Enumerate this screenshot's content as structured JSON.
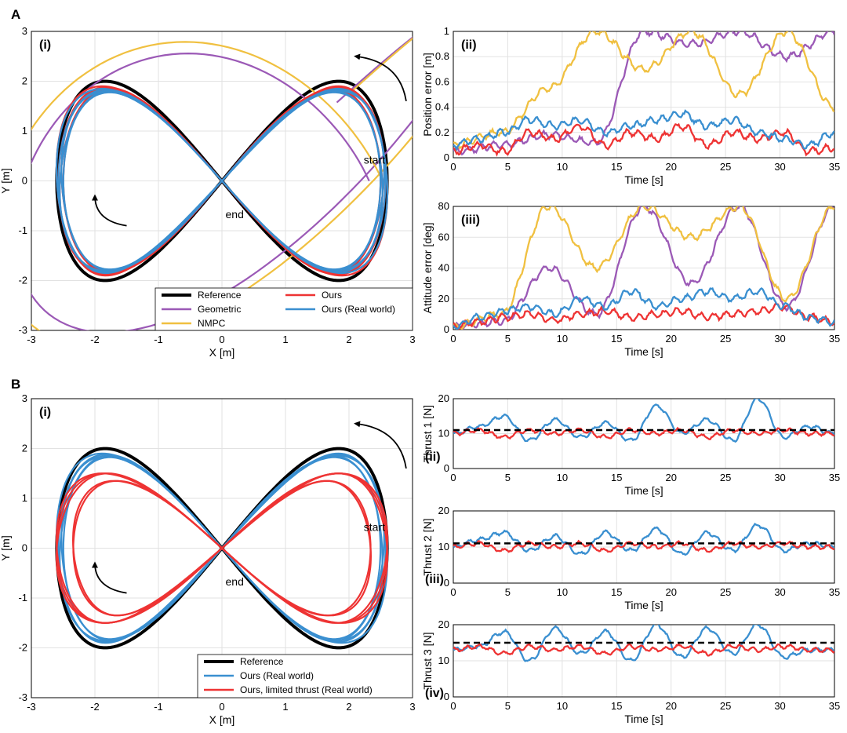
{
  "colors": {
    "reference": "#000000",
    "geometric": "#9b59b6",
    "nmpc": "#f0c040",
    "ours": "#ee3333",
    "ours_real": "#3a8fd0",
    "limited": "#ee3333",
    "grid": "#e2e2e2"
  },
  "panels": [
    {
      "letter": "A"
    },
    {
      "letter": "B"
    }
  ],
  "chart_data": [
    {
      "id": "A-i",
      "panel": "A",
      "label": "(i)",
      "type": "line",
      "xlabel": "X [m]",
      "ylabel": "Y [m]",
      "xlim": [
        -3,
        3
      ],
      "ylim": [
        -3,
        3
      ],
      "xticks": [
        -3,
        -2,
        -1,
        0,
        1,
        2,
        3
      ],
      "yticks": [
        -3,
        -2,
        -1,
        0,
        1,
        2,
        3
      ],
      "grid": true,
      "legend_position": "bottom-right",
      "annotations": [
        {
          "text": "start",
          "x": 2.4,
          "y": 0.35
        },
        {
          "text": "end",
          "x": 0.2,
          "y": -0.75
        }
      ],
      "series": [
        {
          "name": "Reference",
          "key": "reference",
          "shape": "figure-eight",
          "amp_x": 2.6,
          "amp_y": 2.0
        },
        {
          "name": "Geometric",
          "key": "geometric",
          "shape": "divergent"
        },
        {
          "name": "NMPC",
          "key": "nmpc",
          "shape": "divergent"
        },
        {
          "name": "Ours",
          "key": "ours",
          "shape": "figure-eight",
          "amp_x": 2.6,
          "amp_y": 1.9
        },
        {
          "name": "Ours (Real world)",
          "key": "ours_real",
          "shape": "figure-eight",
          "amp_x": 2.6,
          "amp_y": 1.85
        }
      ]
    },
    {
      "id": "A-ii",
      "panel": "A",
      "label": "(ii)",
      "type": "line",
      "xlabel": "Time [s]",
      "ylabel": "Position error [m]",
      "xlim": [
        0,
        35
      ],
      "ylim": [
        0,
        1
      ],
      "xticks": [
        0,
        5,
        10,
        15,
        20,
        25,
        30,
        35
      ],
      "yticks": [
        "0",
        "0.2",
        "0.4",
        "0.6",
        "0.8",
        "1"
      ],
      "grid": true,
      "series": [
        {
          "name": "Geometric",
          "key": "geometric",
          "values": [
            0.05,
            0.1,
            0.18,
            0.12,
            1.0,
            0.9,
            1.0,
            0.8,
            1.0
          ]
        },
        {
          "name": "NMPC",
          "key": "nmpc",
          "values": [
            0.1,
            0.2,
            0.55,
            1.0,
            0.7,
            1.0,
            0.5,
            1.0,
            0.4
          ]
        },
        {
          "name": "Ours",
          "key": "ours",
          "values": [
            0.05,
            0.1,
            0.05,
            0.2,
            0.15,
            0.25,
            0.1,
            0.2,
            0.15,
            0.25,
            0.1,
            0.2,
            0.15,
            0.2,
            0.05,
            0.08
          ]
        },
        {
          "name": "Ours (Real world)",
          "key": "ours_real",
          "values": [
            0.1,
            0.15,
            0.2,
            0.3,
            0.25,
            0.3,
            0.2,
            0.25,
            0.3,
            0.35,
            0.25,
            0.3,
            0.2,
            0.15,
            0.1,
            0.2
          ]
        }
      ]
    },
    {
      "id": "A-iii",
      "panel": "A",
      "label": "(iii)",
      "type": "line",
      "xlabel": "Time [s]",
      "ylabel": "Attitude error [deg]",
      "xlim": [
        0,
        35
      ],
      "ylim": [
        0,
        80
      ],
      "xticks": [
        0,
        5,
        10,
        15,
        20,
        25,
        30,
        35
      ],
      "yticks": [
        0,
        20,
        40,
        60,
        80
      ],
      "grid": true,
      "series": [
        {
          "name": "Geometric",
          "key": "geometric",
          "values": [
            2,
            5,
            40,
            10,
            80,
            30,
            80,
            15,
            80
          ]
        },
        {
          "name": "NMPC",
          "key": "nmpc",
          "values": [
            2,
            10,
            80,
            40,
            80,
            60,
            80,
            20,
            80
          ]
        },
        {
          "name": "Ours",
          "key": "ours",
          "values": [
            2,
            5,
            8,
            10,
            6,
            10,
            12,
            8,
            10,
            12,
            8,
            10,
            12,
            15,
            8,
            5
          ]
        },
        {
          "name": "Ours (Real world)",
          "key": "ours_real",
          "values": [
            2,
            8,
            12,
            15,
            10,
            20,
            15,
            25,
            15,
            20,
            25,
            20,
            25,
            15,
            8,
            5
          ]
        }
      ]
    },
    {
      "id": "B-i",
      "panel": "B",
      "label": "(i)",
      "type": "line",
      "xlabel": "X [m]",
      "ylabel": "Y [m]",
      "xlim": [
        -3,
        3
      ],
      "ylim": [
        -3,
        3
      ],
      "xticks": [
        -3,
        -2,
        -1,
        0,
        1,
        2,
        3
      ],
      "yticks": [
        -3,
        -2,
        -1,
        0,
        1,
        2,
        3
      ],
      "grid": true,
      "legend_position": "bottom-right",
      "annotations": [
        {
          "text": "start",
          "x": 2.4,
          "y": 0.35
        },
        {
          "text": "end",
          "x": 0.2,
          "y": -0.75
        }
      ],
      "series": [
        {
          "name": "Reference",
          "key": "reference",
          "shape": "figure-eight",
          "amp_x": 2.6,
          "amp_y": 2.0
        },
        {
          "name": "Ours (Real world)",
          "key": "ours_real",
          "shape": "figure-eight",
          "amp_x": 2.6,
          "amp_y": 1.9
        },
        {
          "name": "Ours, limited thrust (Real world)",
          "key": "limited",
          "shape": "figure-eight",
          "amp_x": 2.6,
          "amp_y": 1.5
        }
      ]
    },
    {
      "id": "B-ii",
      "panel": "B",
      "label": "(ii)",
      "type": "line",
      "xlabel": "Time [s]",
      "ylabel": "Thrust 1 [N]",
      "xlim": [
        0,
        35
      ],
      "ylim": [
        0,
        20
      ],
      "xticks": [
        0,
        5,
        10,
        15,
        20,
        25,
        30,
        35
      ],
      "yticks": [
        0,
        10,
        20
      ],
      "grid": true,
      "reference_value": 11,
      "series": [
        {
          "name": "Ours (Real world)",
          "key": "ours_real",
          "values": [
            10,
            12,
            15,
            8,
            14,
            9,
            13,
            8,
            18,
            10,
            14,
            8,
            20,
            9,
            12,
            10
          ]
        },
        {
          "name": "Ours, limited thrust (Real world)",
          "key": "limited",
          "values": [
            10,
            11,
            9,
            11,
            10,
            11,
            9,
            11,
            10,
            11,
            9,
            11,
            10,
            11,
            10,
            10
          ]
        }
      ]
    },
    {
      "id": "B-iii",
      "panel": "B",
      "label": "(iii)",
      "type": "line",
      "xlabel": "Time [s]",
      "ylabel": "Thrust 2 [N]",
      "xlim": [
        0,
        35
      ],
      "ylim": [
        0,
        20
      ],
      "xticks": [
        0,
        5,
        10,
        15,
        20,
        25,
        30,
        35
      ],
      "yticks": [
        0,
        10,
        20
      ],
      "grid": true,
      "reference_value": 11,
      "series": [
        {
          "name": "Ours (Real world)",
          "key": "ours_real",
          "values": [
            10,
            12,
            14,
            9,
            13,
            8,
            14,
            9,
            15,
            8,
            14,
            9,
            16,
            9,
            11,
            10
          ]
        },
        {
          "name": "Ours, limited thrust (Real world)",
          "key": "limited",
          "values": [
            10,
            11,
            9,
            11,
            10,
            11,
            9,
            11,
            10,
            11,
            9,
            11,
            10,
            11,
            10,
            10
          ]
        }
      ]
    },
    {
      "id": "B-iv",
      "panel": "B",
      "label": "(iv)",
      "type": "line",
      "xlabel": "Time [s]",
      "ylabel": "Thrust 3 [N]",
      "xlim": [
        0,
        35
      ],
      "ylim": [
        0,
        20
      ],
      "xticks": [
        0,
        5,
        10,
        15,
        20,
        25,
        30,
        35
      ],
      "yticks": [
        0,
        10,
        20
      ],
      "grid": true,
      "reference_value": 15,
      "series": [
        {
          "name": "Ours (Real world)",
          "key": "ours_real",
          "values": [
            13,
            14,
            18,
            10,
            19,
            12,
            18,
            10,
            20,
            11,
            19,
            12,
            20,
            11,
            13,
            13
          ]
        },
        {
          "name": "Ours, limited thrust (Real world)",
          "key": "limited",
          "values": [
            13,
            14,
            12,
            14,
            13,
            14,
            12,
            14,
            13,
            14,
            12,
            14,
            13,
            14,
            13,
            13
          ]
        }
      ]
    }
  ]
}
